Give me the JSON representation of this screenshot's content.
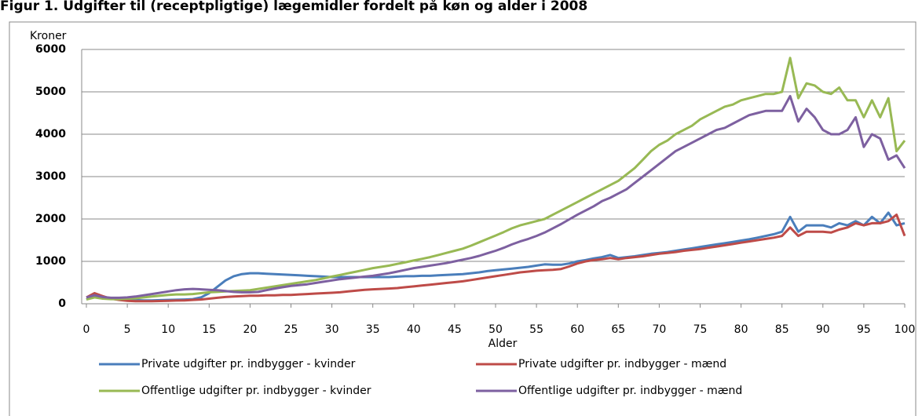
{
  "chart_data": {
    "type": "line",
    "title": "Figur 1. Udgifter til (receptpligtige) lægemidler fordelt på køn og alder i 2008",
    "x_label": "Alder",
    "y_label": "Kroner",
    "x": [
      0,
      1,
      2,
      3,
      4,
      5,
      6,
      7,
      8,
      9,
      10,
      11,
      12,
      13,
      14,
      15,
      16,
      17,
      18,
      19,
      20,
      21,
      22,
      23,
      24,
      25,
      26,
      27,
      28,
      29,
      30,
      31,
      32,
      33,
      34,
      35,
      36,
      37,
      38,
      39,
      40,
      41,
      42,
      43,
      44,
      45,
      46,
      47,
      48,
      49,
      50,
      51,
      52,
      53,
      54,
      55,
      56,
      57,
      58,
      59,
      60,
      61,
      62,
      63,
      64,
      65,
      66,
      67,
      68,
      69,
      70,
      71,
      72,
      73,
      74,
      75,
      76,
      77,
      78,
      79,
      80,
      81,
      82,
      83,
      84,
      85,
      86,
      87,
      88,
      89,
      90,
      91,
      92,
      93,
      94,
      95,
      96,
      97,
      98,
      99,
      100
    ],
    "xlim": [
      0,
      100
    ],
    "xticks": [
      0,
      5,
      10,
      15,
      20,
      25,
      30,
      35,
      40,
      45,
      50,
      55,
      60,
      65,
      70,
      75,
      80,
      85,
      90,
      95,
      100
    ],
    "ylim": [
      0,
      6000
    ],
    "yticks": [
      0,
      1000,
      2000,
      3000,
      4000,
      5000,
      6000
    ],
    "grid": true,
    "legend": "bottom",
    "series": [
      {
        "name": "Private udgifter pr. indbygger - kvinder",
        "color": "#4a7ebb",
        "values": [
          100,
          200,
          150,
          120,
          100,
          90,
          85,
          80,
          80,
          85,
          90,
          95,
          100,
          110,
          150,
          250,
          400,
          550,
          650,
          700,
          720,
          720,
          710,
          700,
          690,
          680,
          670,
          660,
          650,
          640,
          630,
          630,
          630,
          630,
          630,
          630,
          630,
          630,
          640,
          650,
          650,
          660,
          660,
          670,
          680,
          690,
          700,
          720,
          740,
          770,
          790,
          810,
          830,
          850,
          870,
          900,
          930,
          920,
          920,
          950,
          1000,
          1030,
          1070,
          1100,
          1150,
          1080,
          1100,
          1120,
          1150,
          1180,
          1200,
          1220,
          1250,
          1280,
          1310,
          1340,
          1370,
          1400,
          1430,
          1460,
          1490,
          1520,
          1560,
          1600,
          1640,
          1700,
          2050,
          1700,
          1850,
          1850,
          1850,
          1800,
          1900,
          1850,
          1950,
          1850,
          2050,
          1900,
          2150,
          1850,
          1900
        ]
      },
      {
        "name": "Private udgifter pr. indbygger - mænd",
        "color": "#be4b48",
        "values": [
          150,
          250,
          180,
          120,
          90,
          70,
          60,
          60,
          60,
          65,
          70,
          75,
          80,
          90,
          100,
          120,
          140,
          160,
          170,
          180,
          190,
          190,
          200,
          200,
          210,
          210,
          220,
          230,
          240,
          250,
          260,
          270,
          290,
          310,
          330,
          340,
          350,
          360,
          370,
          390,
          410,
          430,
          450,
          470,
          490,
          510,
          530,
          560,
          590,
          620,
          650,
          680,
          710,
          740,
          760,
          780,
          790,
          800,
          820,
          880,
          950,
          1000,
          1030,
          1050,
          1080,
          1050,
          1080,
          1100,
          1120,
          1150,
          1180,
          1200,
          1220,
          1250,
          1270,
          1290,
          1320,
          1350,
          1380,
          1410,
          1440,
          1470,
          1500,
          1530,
          1560,
          1600,
          1800,
          1600,
          1700,
          1700,
          1700,
          1680,
          1750,
          1800,
          1900,
          1850,
          1900,
          1900,
          1950,
          2100,
          1600
        ]
      },
      {
        "name": "Offentlige udgifter pr. indbygger - kvinder",
        "color": "#98b954",
        "values": [
          100,
          150,
          120,
          110,
          110,
          120,
          130,
          150,
          170,
          190,
          210,
          220,
          220,
          230,
          250,
          270,
          280,
          290,
          300,
          310,
          320,
          350,
          380,
          410,
          440,
          470,
          500,
          530,
          560,
          600,
          640,
          680,
          720,
          760,
          800,
          840,
          870,
          900,
          940,
          980,
          1020,
          1060,
          1100,
          1150,
          1200,
          1250,
          1300,
          1370,
          1450,
          1530,
          1610,
          1690,
          1780,
          1850,
          1900,
          1950,
          2000,
          2100,
          2200,
          2300,
          2400,
          2500,
          2600,
          2700,
          2800,
          2900,
          3050,
          3200,
          3400,
          3600,
          3750,
          3850,
          4000,
          4100,
          4200,
          4350,
          4450,
          4550,
          4650,
          4700,
          4800,
          4850,
          4900,
          4950,
          4950,
          5000,
          5800,
          4850,
          5200,
          5150,
          5000,
          4950,
          5100,
          4800,
          4800,
          4400,
          4800,
          4400,
          4850,
          3600,
          3850
        ]
      },
      {
        "name": "Offentlige udgifter pr. indbygger - mænd",
        "color": "#7d60a0",
        "values": [
          150,
          200,
          160,
          140,
          140,
          150,
          170,
          200,
          230,
          260,
          290,
          320,
          340,
          350,
          340,
          330,
          320,
          300,
          280,
          270,
          270,
          280,
          320,
          360,
          390,
          420,
          440,
          460,
          490,
          520,
          550,
          580,
          600,
          620,
          640,
          660,
          690,
          720,
          760,
          800,
          840,
          870,
          900,
          930,
          960,
          1000,
          1040,
          1080,
          1130,
          1190,
          1250,
          1320,
          1400,
          1470,
          1530,
          1600,
          1680,
          1780,
          1880,
          1990,
          2100,
          2200,
          2300,
          2420,
          2500,
          2600,
          2700,
          2850,
          3000,
          3150,
          3300,
          3450,
          3600,
          3700,
          3800,
          3900,
          4000,
          4100,
          4150,
          4250,
          4350,
          4450,
          4500,
          4550,
          4550,
          4550,
          4900,
          4300,
          4600,
          4400,
          4100,
          4000,
          4000,
          4100,
          4400,
          3700,
          4000,
          3900,
          3400,
          3500,
          3200
        ]
      }
    ]
  }
}
